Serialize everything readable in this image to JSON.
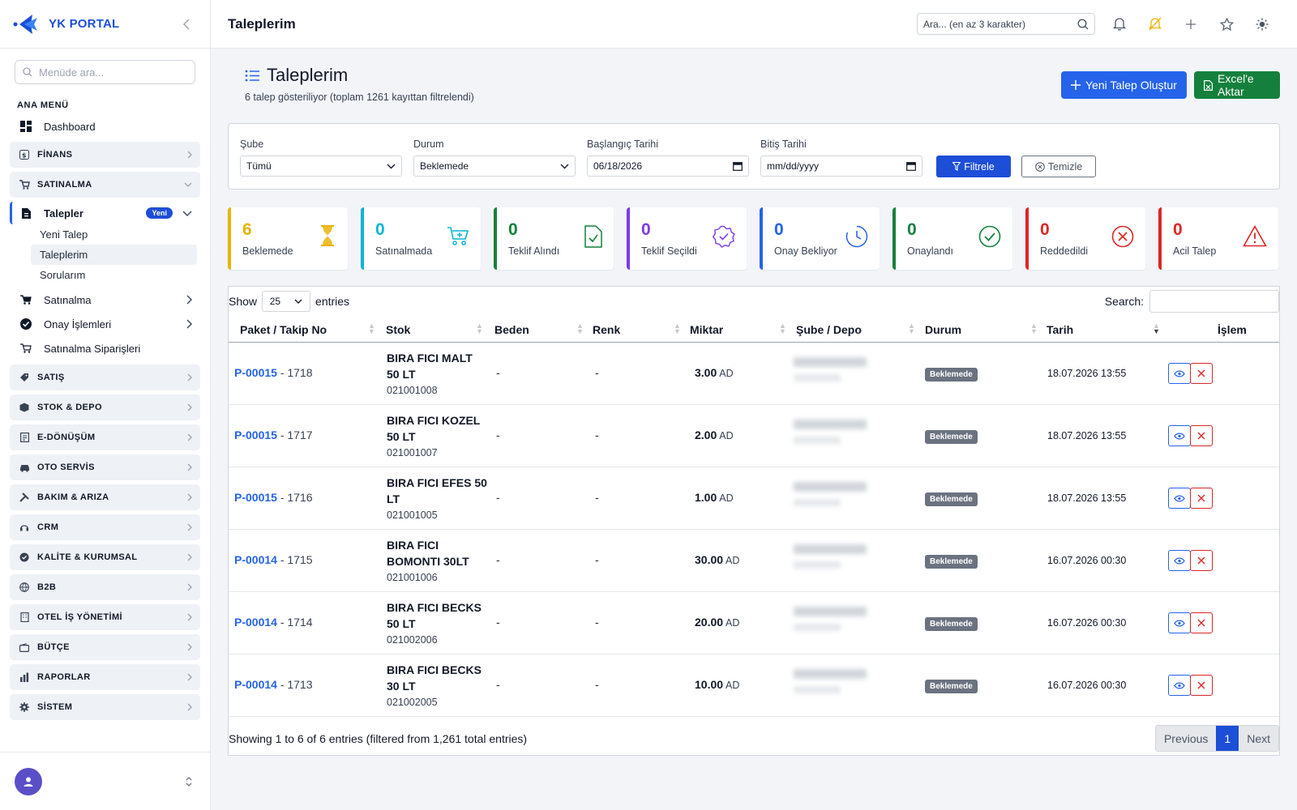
{
  "brand": {
    "name": "YK PORTAL"
  },
  "sidebar": {
    "search_placeholder": "Menüde ara...",
    "section_title": "ANA MENÜ",
    "dashboard": "Dashboard",
    "finans": "FİNANS",
    "satinalma": "SATINALMA",
    "talepler": {
      "label": "Talepler",
      "badge": "Yeni",
      "children": [
        "Yeni Talep",
        "Taleplerim",
        "Sorularım"
      ]
    },
    "sub_items": [
      "Satınalma",
      "Onay İşlemleri",
      "Satınalma Siparişleri"
    ],
    "groups": [
      "SATIŞ",
      "STOK & DEPO",
      "E-DÖNÜŞÜM",
      "OTO SERVİS",
      "BAKIM & ARIZA",
      "CRM",
      "KALİTE & KURUMSAL",
      "B2B",
      "OTEL İŞ YÖNETİMİ",
      "BÜTÇE",
      "RAPORLAR",
      "SİSTEM"
    ]
  },
  "topbar": {
    "title": "Taleplerim",
    "search_placeholder": "Ara... (en az 3 karakter)"
  },
  "page": {
    "title": "Taleplerim",
    "subtitle": "6 talep gösteriliyor (toplam 1261 kayıttan filtrelendi)",
    "new_button": "Yeni Talep Oluştur",
    "excel_button": "Excel'e Aktar"
  },
  "filters": {
    "sube_label": "Şube",
    "sube_value": "Tümü",
    "durum_label": "Durum",
    "durum_value": "Beklemede",
    "start_label": "Başlangıç Tarihi",
    "start_value": "06/18/2026",
    "end_label": "Bitiş Tarihi",
    "end_value": "mm/dd/yyyy",
    "filter_button": "Filtrele",
    "clear_button": "Temizle"
  },
  "stats": [
    {
      "value": "6",
      "label": "Beklemede",
      "color": "#eab308",
      "icon": "hourglass-icon"
    },
    {
      "value": "0",
      "label": "Satınalmada",
      "color": "#06b6d4",
      "icon": "cart-plus-icon"
    },
    {
      "value": "0",
      "label": "Teklif Alındı",
      "color": "#15803d",
      "icon": "file-check-icon"
    },
    {
      "value": "0",
      "label": "Teklif Seçildi",
      "color": "#7c3aed",
      "icon": "badge-check-icon"
    },
    {
      "value": "0",
      "label": "Onay Bekliyor",
      "color": "#2563eb",
      "icon": "clock-icon"
    },
    {
      "value": "0",
      "label": "Onaylandı",
      "color": "#15803d",
      "icon": "check-circle-icon"
    },
    {
      "value": "0",
      "label": "Reddedildi",
      "color": "#dc2626",
      "icon": "x-circle-icon"
    },
    {
      "value": "0",
      "label": "Acil Talep",
      "color": "#dc2626",
      "icon": "warning-icon"
    }
  ],
  "table": {
    "show_label": "Show",
    "page_length": "25",
    "entries_label": "entries",
    "search_label": "Search:",
    "columns": [
      "Paket / Takip No",
      "Stok",
      "Beden",
      "Renk",
      "Miktar",
      "Şube / Depo",
      "Durum",
      "Tarih",
      "İşlem"
    ],
    "rows": [
      {
        "pkg": "P-00015",
        "track": " - 1718",
        "stok1": "BIRA FICI MALT",
        "stok2": "50 LT",
        "code": "021001008",
        "beden": "-",
        "renk": "-",
        "qty": "3.00",
        "unit": "AD",
        "status": "Beklemede",
        "date": "18.07.2026 13:55"
      },
      {
        "pkg": "P-00015",
        "track": " - 1717",
        "stok1": "BIRA FICI KOZEL",
        "stok2": "50 LT",
        "code": "021001007",
        "beden": "-",
        "renk": "-",
        "qty": "2.00",
        "unit": "AD",
        "status": "Beklemede",
        "date": "18.07.2026 13:55"
      },
      {
        "pkg": "P-00015",
        "track": " - 1716",
        "stok1": "BIRA FICI EFES 50",
        "stok2": "LT",
        "code": "021001005",
        "beden": "-",
        "renk": "-",
        "qty": "1.00",
        "unit": "AD",
        "status": "Beklemede",
        "date": "18.07.2026 13:55"
      },
      {
        "pkg": "P-00014",
        "track": " - 1715",
        "stok1": "BIRA FICI",
        "stok2": "BOMONTI 30LT",
        "code": "021001006",
        "beden": "-",
        "renk": "-",
        "qty": "30.00",
        "unit": "AD",
        "status": "Beklemede",
        "date": "16.07.2026 00:30"
      },
      {
        "pkg": "P-00014",
        "track": " - 1714",
        "stok1": "BIRA FICI BECKS",
        "stok2": "50 LT",
        "code": "021002006",
        "beden": "-",
        "renk": "-",
        "qty": "20.00",
        "unit": "AD",
        "status": "Beklemede",
        "date": "16.07.2026 00:30"
      },
      {
        "pkg": "P-00014",
        "track": " - 1713",
        "stok1": "BIRA FICI BECKS",
        "stok2": "30 LT",
        "code": "021002005",
        "beden": "-",
        "renk": "-",
        "qty": "10.00",
        "unit": "AD",
        "status": "Beklemede",
        "date": "16.07.2026 00:30"
      }
    ],
    "footer_info": "Showing 1 to 6 of 6 entries (filtered from 1,261 total entries)",
    "prev": "Previous",
    "page": "1",
    "next": "Next"
  }
}
